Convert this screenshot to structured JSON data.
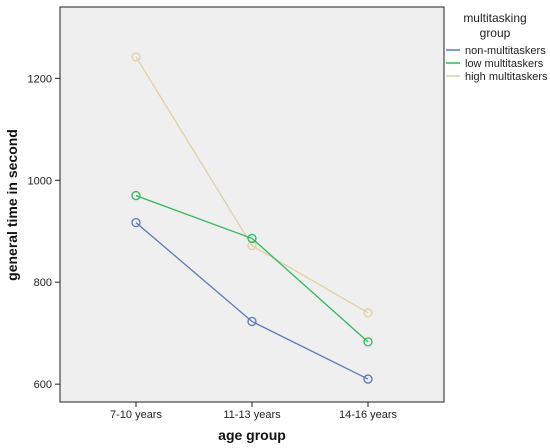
{
  "chart_data": {
    "type": "line",
    "title": "",
    "xlabel": "age group",
    "ylabel": "general time in second",
    "categories": [
      "7-10 years",
      "11-13 years",
      "14-16 years"
    ],
    "ylim": [
      565,
      1340
    ],
    "yticks": [
      600,
      800,
      1000,
      1200
    ],
    "yticks_labels": [
      "600",
      "800",
      "1000",
      "1200"
    ],
    "grid": false,
    "legend_position": "right",
    "legend_title": [
      "multitasking",
      "group"
    ],
    "series": [
      {
        "name": "non-multitaskers",
        "values": [
          917,
          723,
          610
        ],
        "color": "#5a78b8"
      },
      {
        "name": "low multitaskers",
        "values": [
          970,
          886,
          683
        ],
        "color": "#2db85a"
      },
      {
        "name": "high multitaskers",
        "values": [
          1242,
          872,
          740
        ],
        "color": "#ddd2a0"
      }
    ],
    "colors": {
      "plot_background": "#efefef",
      "axis": "#222222"
    }
  }
}
